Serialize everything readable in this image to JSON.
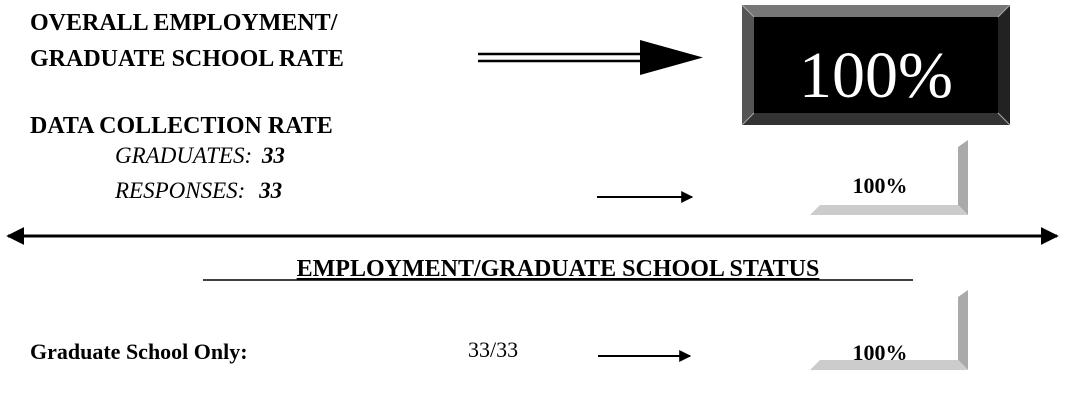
{
  "overall": {
    "title_lines": [
      "OVERALL EMPLOYMENT/",
      "GRADUATE SCHOOL RATE"
    ],
    "rate": "100%"
  },
  "data_collection": {
    "title": "DATA COLLECTION RATE",
    "graduates": {
      "label": "GRADUATES:",
      "value": "33"
    },
    "responses": {
      "label": "RESPONSES:",
      "value": "33"
    },
    "rate": "100%"
  },
  "status": {
    "heading": "EMPLOYMENT/GRADUATE SCHOOL STATUS",
    "rows": [
      {
        "label": "Graduate School Only:",
        "fraction": "33/33",
        "rate": "100%"
      }
    ]
  }
}
